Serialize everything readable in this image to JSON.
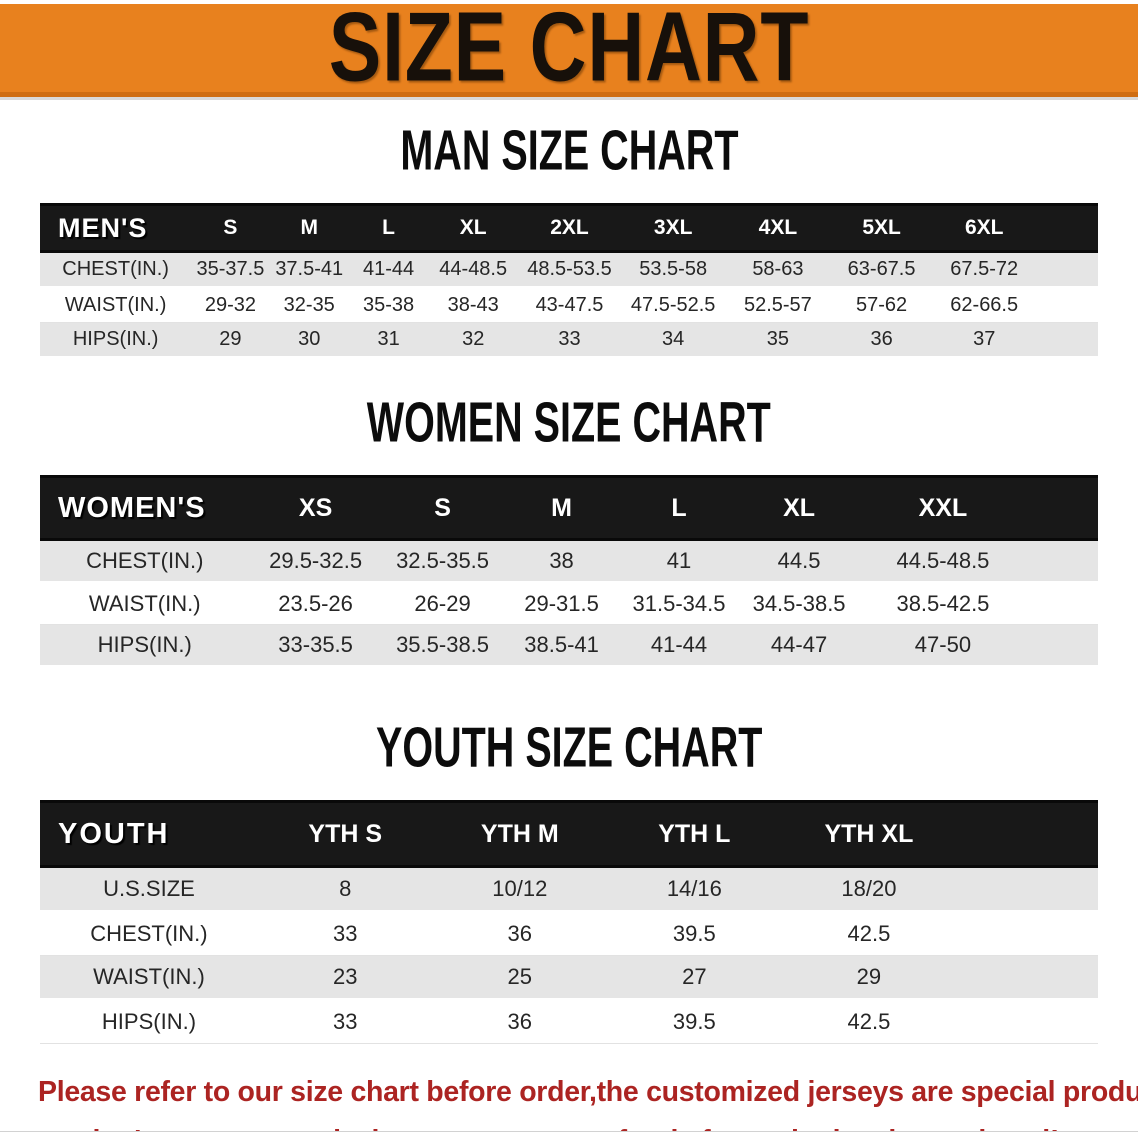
{
  "banner": {
    "title": "SIZE CHART",
    "bg_color": "#e8811e",
    "text_color": "#17100a"
  },
  "sections": [
    {
      "heading": "MAN SIZE CHART",
      "label": "MEN'S",
      "columns": [
        "S",
        "M",
        "L",
        "XL",
        "2XL",
        "3XL",
        "4XL",
        "5XL",
        "6XL"
      ],
      "rows": [
        {
          "label": "CHEST(IN.)",
          "values": [
            "35-37.5",
            "37.5-41",
            "41-44",
            "44-48.5",
            "48.5-53.5",
            "53.5-58",
            "58-63",
            "63-67.5",
            "67.5-72"
          ]
        },
        {
          "label": "WAIST(IN.)",
          "values": [
            "29-32",
            "32-35",
            "35-38",
            "38-43",
            "43-47.5",
            "47.5-52.5",
            "52.5-57",
            "57-62",
            "62-66.5"
          ]
        },
        {
          "label": "HIPS(IN.)",
          "values": [
            "29",
            "30",
            "31",
            "32",
            "33",
            "34",
            "35",
            "36",
            "37"
          ]
        }
      ]
    },
    {
      "heading": "WOMEN SIZE CHART",
      "label": "WOMEN'S",
      "columns": [
        "XS",
        "S",
        "M",
        "L",
        "XL",
        "XXL"
      ],
      "rows": [
        {
          "label": "CHEST(IN.)",
          "values": [
            "29.5-32.5",
            "32.5-35.5",
            "38",
            "41",
            "44.5",
            "44.5-48.5"
          ]
        },
        {
          "label": "WAIST(IN.)",
          "values": [
            "23.5-26",
            "26-29",
            "29-31.5",
            "31.5-34.5",
            "34.5-38.5",
            "38.5-42.5"
          ]
        },
        {
          "label": "HIPS(IN.)",
          "values": [
            "33-35.5",
            "35.5-38.5",
            "38.5-41",
            "41-44",
            "44-47",
            "47-50"
          ]
        }
      ]
    },
    {
      "heading": "YOUTH SIZE CHART",
      "label": "YOUTH",
      "columns": [
        "YTH S",
        "YTH M",
        "YTH L",
        "YTH XL"
      ],
      "rows": [
        {
          "label": "U.S.SIZE",
          "values": [
            "8",
            "10/12",
            "14/16",
            "18/20"
          ]
        },
        {
          "label": "CHEST(IN.)",
          "values": [
            "33",
            "36",
            "39.5",
            "42.5"
          ]
        },
        {
          "label": "WAIST(IN.)",
          "values": [
            "23",
            "25",
            "27",
            "29"
          ]
        },
        {
          "label": "HIPS(IN.)",
          "values": [
            "33",
            "36",
            "39.5",
            "42.5"
          ]
        }
      ]
    }
  ],
  "disclaimer": {
    "line1": "Please refer to our size chart before order,the customized jerseys are special products,",
    "line2": "we don't accept cancel, change, teturn or refund after order has been placed!",
    "color": "#ac2422"
  },
  "chart_data": [
    {
      "type": "table",
      "title": "MAN SIZE CHART",
      "columns": [
        "MEN'S",
        "S",
        "M",
        "L",
        "XL",
        "2XL",
        "3XL",
        "4XL",
        "5XL",
        "6XL"
      ],
      "rows": [
        [
          "CHEST(IN.)",
          "35-37.5",
          "37.5-41",
          "41-44",
          "44-48.5",
          "48.5-53.5",
          "53.5-58",
          "58-63",
          "63-67.5",
          "67.5-72"
        ],
        [
          "WAIST(IN.)",
          "29-32",
          "32-35",
          "35-38",
          "38-43",
          "43-47.5",
          "47.5-52.5",
          "52.5-57",
          "57-62",
          "62-66.5"
        ],
        [
          "HIPS(IN.)",
          "29",
          "30",
          "31",
          "32",
          "33",
          "34",
          "35",
          "36",
          "37"
        ]
      ]
    },
    {
      "type": "table",
      "title": "WOMEN SIZE CHART",
      "columns": [
        "WOMEN'S",
        "XS",
        "S",
        "M",
        "L",
        "XL",
        "XXL"
      ],
      "rows": [
        [
          "CHEST(IN.)",
          "29.5-32.5",
          "32.5-35.5",
          "38",
          "41",
          "44.5",
          "44.5-48.5"
        ],
        [
          "WAIST(IN.)",
          "23.5-26",
          "26-29",
          "29-31.5",
          "31.5-34.5",
          "34.5-38.5",
          "38.5-42.5"
        ],
        [
          "HIPS(IN.)",
          "33-35.5",
          "35.5-38.5",
          "38.5-41",
          "41-44",
          "44-47",
          "47-50"
        ]
      ]
    },
    {
      "type": "table",
      "title": "YOUTH SIZE CHART",
      "columns": [
        "YOUTH",
        "YTH S",
        "YTH M",
        "YTH L",
        "YTH XL"
      ],
      "rows": [
        [
          "U.S.SIZE",
          "8",
          "10/12",
          "14/16",
          "18/20"
        ],
        [
          "CHEST(IN.)",
          "33",
          "36",
          "39.5",
          "42.5"
        ],
        [
          "WAIST(IN.)",
          "23",
          "25",
          "27",
          "29"
        ],
        [
          "HIPS(IN.)",
          "33",
          "36",
          "39.5",
          "42.5"
        ]
      ]
    }
  ]
}
